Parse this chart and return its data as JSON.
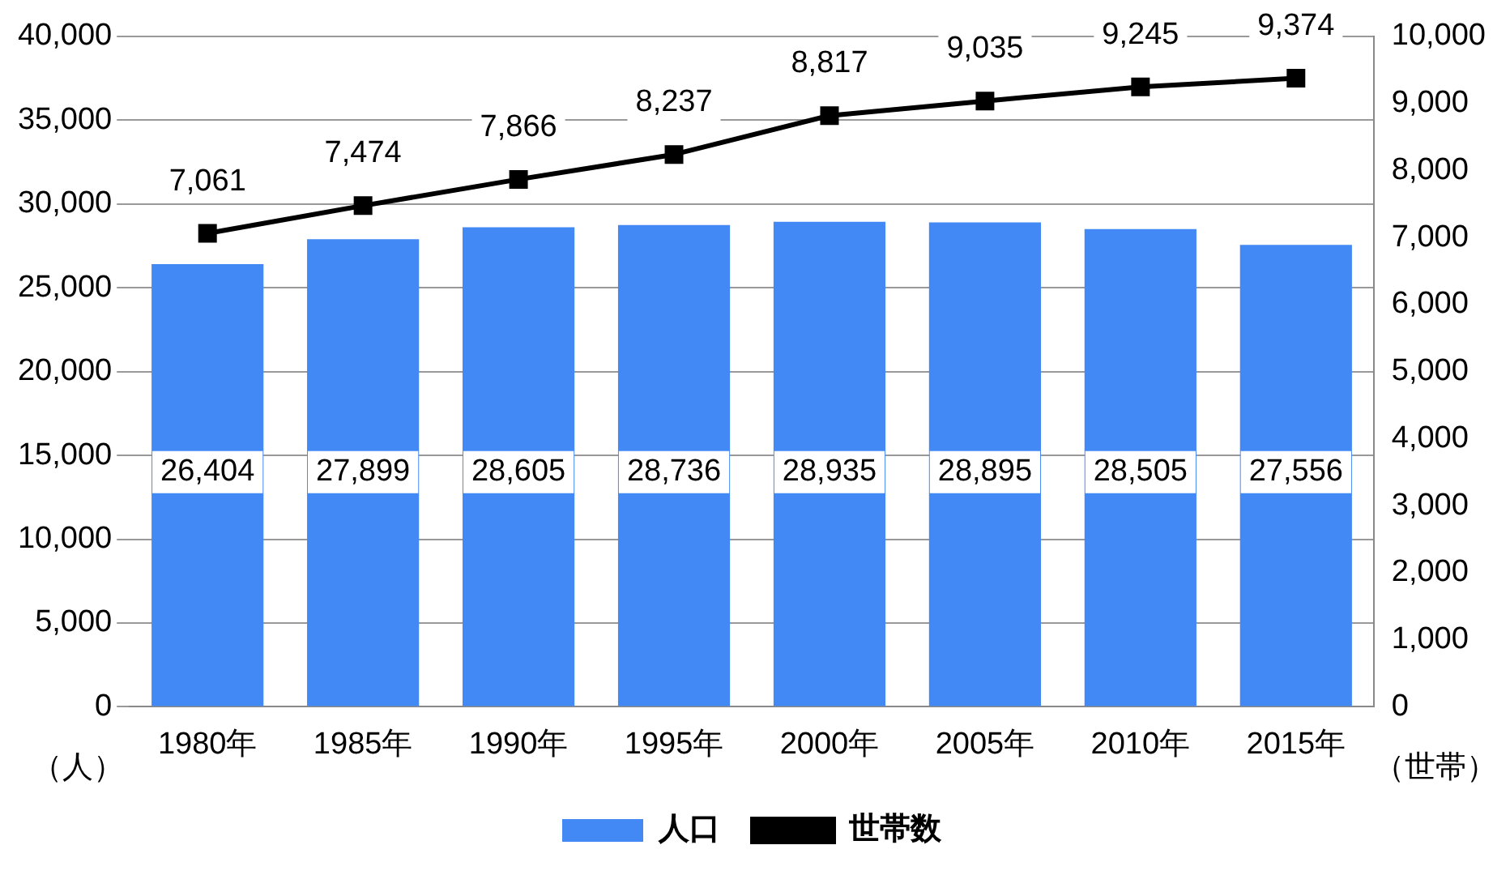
{
  "chart_data": {
    "type": "bar",
    "categories": [
      "1980年",
      "1985年",
      "1990年",
      "1995年",
      "2000年",
      "2005年",
      "2010年",
      "2015年"
    ],
    "series": [
      {
        "name": "人口",
        "color": "#4389f5",
        "values": [
          26404,
          27899,
          28605,
          28736,
          28935,
          28895,
          28505,
          27556
        ],
        "value_labels": [
          "26,404",
          "27,899",
          "28,605",
          "28,736",
          "28,935",
          "28,895",
          "28,505",
          "27,556"
        ]
      },
      {
        "name": "世帯数",
        "type": "line",
        "axis": "y2",
        "color": "#000000",
        "marker": "square",
        "values": [
          7061,
          7474,
          7866,
          8237,
          8817,
          9035,
          9245,
          9374
        ],
        "value_labels": [
          "7,061",
          "7,474",
          "7,866",
          "8,237",
          "8,817",
          "9,035",
          "9,245",
          "9,374"
        ]
      }
    ],
    "ylabel": "（人）",
    "y2label": "（世帯）",
    "ylim": [
      0,
      40000
    ],
    "yticks": [
      0,
      {
        "value": 5000,
        "label": "5,000"
      },
      {
        "value": 10000,
        "label": "10,000"
      },
      {
        "value": 15000,
        "label": "15,000"
      },
      {
        "value": 20000,
        "label": "20,000"
      },
      {
        "value": 25000,
        "label": "25,000"
      },
      {
        "value": 30000,
        "label": "30,000"
      },
      {
        "value": 35000,
        "label": "35,000"
      },
      {
        "value": 40000,
        "label": "40,000"
      }
    ],
    "y2lim": [
      0,
      10000
    ],
    "y2ticks": [
      0,
      {
        "value": 1000,
        "label": "1,000"
      },
      {
        "value": 2000,
        "label": "2,000"
      },
      {
        "value": 3000,
        "label": "3,000"
      },
      {
        "value": 4000,
        "label": "4,000"
      },
      {
        "value": 5000,
        "label": "5,000"
      },
      {
        "value": 6000,
        "label": "6,000"
      },
      {
        "value": 7000,
        "label": "7,000"
      },
      {
        "value": 8000,
        "label": "8,000"
      },
      {
        "value": 9000,
        "label": "9,000"
      },
      {
        "value": 10000,
        "label": "10,000"
      }
    ],
    "grid": "y",
    "legend": "bottom"
  }
}
